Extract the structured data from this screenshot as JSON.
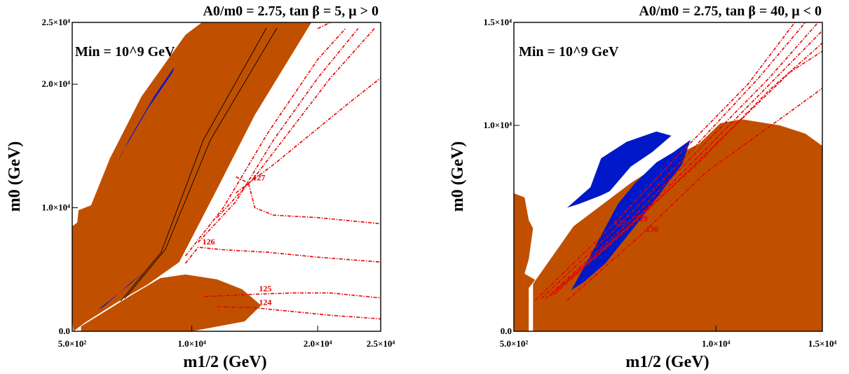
{
  "chart_data": [
    {
      "type": "contour",
      "title": "A0/m0 = 2.75, tan β = 5, μ > 0",
      "inset_label": "Min = 10^9 GeV",
      "xlabel": "m1/2 (GeV)",
      "ylabel": "m0 (GeV)",
      "xlim": [
        500,
        25000
      ],
      "ylim": [
        0,
        25000
      ],
      "x_ticks": [
        "5.0×10²",
        "1.0×10⁴",
        "2.0×10⁴",
        "2.5×10⁴"
      ],
      "x_tick_values": [
        500,
        10000,
        20000,
        25000
      ],
      "y_ticks": [
        "0.0",
        "1.0×10⁴",
        "2.0×10⁴",
        "2.5×10⁴"
      ],
      "y_tick_values": [
        0,
        10000,
        20000,
        25000
      ],
      "regions": [
        {
          "color": "#c05000",
          "polygon": [
            [
              500,
              1000
            ],
            [
              500,
              8500
            ],
            [
              900,
              8800
            ],
            [
              1000,
              9800
            ],
            [
              2000,
              10200
            ],
            [
              3500,
              14000
            ],
            [
              6000,
              19000
            ],
            [
              9500,
              24000
            ],
            [
              10800,
              25000
            ],
            [
              19500,
              25000
            ],
            [
              15000,
              17500
            ],
            [
              12000,
              11500
            ],
            [
              9000,
              5600
            ],
            [
              6500,
              3800
            ],
            [
              4000,
              2300
            ],
            [
              1500,
              700
            ],
            [
              600,
              0
            ]
          ]
        },
        {
          "color": "#c05000",
          "polygon": [
            [
              1200,
              400
            ],
            [
              5000,
              2800
            ],
            [
              7500,
              4300
            ],
            [
              9500,
              4600
            ],
            [
              12000,
              4200
            ],
            [
              14000,
              3400
            ],
            [
              15500,
              2100
            ],
            [
              14200,
              800
            ],
            [
              10000,
              0
            ],
            [
              1200,
              0
            ]
          ]
        },
        {
          "color": "#0018c8",
          "polygon": [
            [
              3800,
              13000
            ],
            [
              5000,
              15500
            ],
            [
              7000,
              19000
            ],
            [
              8600,
              21400
            ],
            [
              8500,
              21000
            ],
            [
              6500,
              18000
            ],
            [
              4500,
              14500
            ]
          ]
        },
        {
          "color": "#0018c8",
          "polygon": [
            [
              2500,
              1700
            ],
            [
              5200,
              3900
            ],
            [
              6200,
              4800
            ],
            [
              5000,
              3800
            ],
            [
              3000,
              2000
            ]
          ]
        }
      ],
      "contours": [
        {
          "label": "124",
          "points": [
            [
              12000,
              2000
            ],
            [
              15000,
              1900
            ],
            [
              18000,
              1600
            ],
            [
              21000,
              1300
            ],
            [
              25000,
              1000
            ]
          ]
        },
        {
          "label": "125",
          "points": [
            [
              11000,
              2800
            ],
            [
              15000,
              3000
            ],
            [
              18000,
              3100
            ],
            [
              21000,
              3100
            ],
            [
              25000,
              2700
            ]
          ]
        },
        {
          "label": "126",
          "points": [
            [
              9500,
              5500
            ],
            [
              10500,
              6800
            ],
            [
              12500,
              6600
            ],
            [
              16000,
              6400
            ],
            [
              20000,
              6000
            ],
            [
              25000,
              5600
            ]
          ]
        },
        {
          "label": "127",
          "points": [
            [
              13500,
              12500
            ],
            [
              14500,
              12000
            ],
            [
              15000,
              10000
            ],
            [
              16500,
              9400
            ],
            [
              20000,
              9200
            ],
            [
              25000,
              8700
            ]
          ]
        },
        {
          "points": [
            [
              9500,
              6100
            ],
            [
              12500,
              10000
            ],
            [
              16000,
              16000
            ],
            [
              20000,
              22000
            ],
            [
              22200,
              24500
            ]
          ]
        },
        {
          "points": [
            [
              10500,
              7200
            ],
            [
              13500,
              10500
            ],
            [
              16500,
              15500
            ],
            [
              20000,
              20500
            ],
            [
              23200,
              24500
            ]
          ]
        },
        {
          "points": [
            [
              12000,
              9200
            ],
            [
              15000,
              12500
            ],
            [
              18000,
              16500
            ],
            [
              21000,
              20500
            ],
            [
              24500,
              24500
            ]
          ]
        },
        {
          "points": [
            [
              13500,
              11200
            ],
            [
              16500,
              13500
            ],
            [
              19500,
              16000
            ],
            [
              22500,
              18500
            ],
            [
              25000,
              20500
            ]
          ]
        },
        {
          "points": [
            [
              20000,
              24500
            ],
            [
              21000,
              25000
            ]
          ]
        }
      ]
    },
    {
      "type": "contour",
      "title": "A0/m0 = 2.75, tan β = 40, μ < 0",
      "inset_label": "Min = 10^9 GeV",
      "xlabel": "m1/2 (GeV)",
      "ylabel": "m0 (GeV)",
      "xlim": [
        500,
        15000
      ],
      "ylim": [
        0,
        15000
      ],
      "x_ticks": [
        "5.0×10²",
        "1.0×10⁴",
        "1.5×10⁴"
      ],
      "x_tick_values": [
        500,
        10000,
        15000
      ],
      "y_ticks": [
        "0.0",
        "1.0×10⁴",
        "1.5×10⁴"
      ],
      "y_tick_values": [
        0,
        10000,
        15000
      ],
      "regions": [
        {
          "color": "#c05000",
          "polygon": [
            [
              500,
              0
            ],
            [
              500,
              6700
            ],
            [
              1000,
              6500
            ],
            [
              1200,
              5400
            ],
            [
              1400,
              5000
            ],
            [
              1200,
              3500
            ],
            [
              1000,
              2800
            ],
            [
              1500,
              2500
            ],
            [
              1200,
              2100
            ],
            [
              1200,
              0
            ]
          ]
        },
        {
          "color": "#c05000",
          "polygon": [
            [
              1400,
              0
            ],
            [
              1400,
              2300
            ],
            [
              3300,
              5100
            ],
            [
              6000,
              7200
            ],
            [
              7800,
              8400
            ],
            [
              9200,
              9100
            ],
            [
              10200,
              10100
            ],
            [
              11200,
              10300
            ],
            [
              13000,
              10000
            ],
            [
              14200,
              9600
            ],
            [
              15000,
              9000
            ],
            [
              15000,
              0
            ]
          ]
        },
        {
          "color": "#0018c8",
          "polygon": [
            [
              3200,
              2000
            ],
            [
              4000,
              3500
            ],
            [
              5400,
              6200
            ],
            [
              6200,
              7200
            ],
            [
              7200,
              8200
            ],
            [
              8000,
              8700
            ],
            [
              8800,
              9300
            ],
            [
              8400,
              8100
            ],
            [
              6500,
              5500
            ],
            [
              4800,
              3300
            ],
            [
              3800,
              2400
            ]
          ]
        },
        {
          "color": "#0018c8",
          "polygon": [
            [
              3000,
              6000
            ],
            [
              4100,
              7000
            ],
            [
              4600,
              8400
            ],
            [
              5800,
              9200
            ],
            [
              7200,
              9700
            ],
            [
              7900,
              9500
            ],
            [
              7000,
              8700
            ],
            [
              6000,
              8000
            ],
            [
              5000,
              6800
            ],
            [
              4600,
              6600
            ],
            [
              3600,
              6200
            ]
          ]
        }
      ],
      "contours": [
        {
          "label": "122",
          "points": [
            [
              1500,
              1500
            ],
            [
              5000,
              5000
            ],
            [
              8000,
              8300
            ],
            [
              11500,
              12000
            ],
            [
              13700,
              15000
            ]
          ]
        },
        {
          "label": "129",
          "points": [
            [
              2500,
              2000
            ],
            [
              6000,
              5200
            ],
            [
              9000,
              8000
            ],
            [
              12500,
              11700
            ],
            [
              15000,
              14000
            ]
          ]
        },
        {
          "label": "130",
          "points": [
            [
              3000,
              1500
            ],
            [
              6500,
              4700
            ],
            [
              9500,
              7700
            ],
            [
              13000,
              10300
            ],
            [
              15000,
              11800
            ]
          ]
        },
        {
          "points": [
            [
              1800,
              1600
            ],
            [
              5300,
              5000
            ],
            [
              8500,
              8400
            ],
            [
              12000,
              12300
            ],
            [
              14200,
              15000
            ]
          ]
        },
        {
          "points": [
            [
              2000,
              1600
            ],
            [
              5600,
              5000
            ],
            [
              8800,
              8400
            ],
            [
              12500,
              12300
            ],
            [
              14800,
              15000
            ]
          ]
        },
        {
          "points": [
            [
              2200,
              1700
            ],
            [
              5800,
              5000
            ],
            [
              9000,
              8300
            ],
            [
              13000,
              12500
            ],
            [
              15000,
              14600
            ]
          ]
        },
        {
          "points": [
            [
              2400,
              1800
            ],
            [
              6100,
              5200
            ],
            [
              9400,
              8500
            ],
            [
              13500,
              12600
            ],
            [
              15000,
              13600
            ]
          ]
        }
      ]
    }
  ]
}
